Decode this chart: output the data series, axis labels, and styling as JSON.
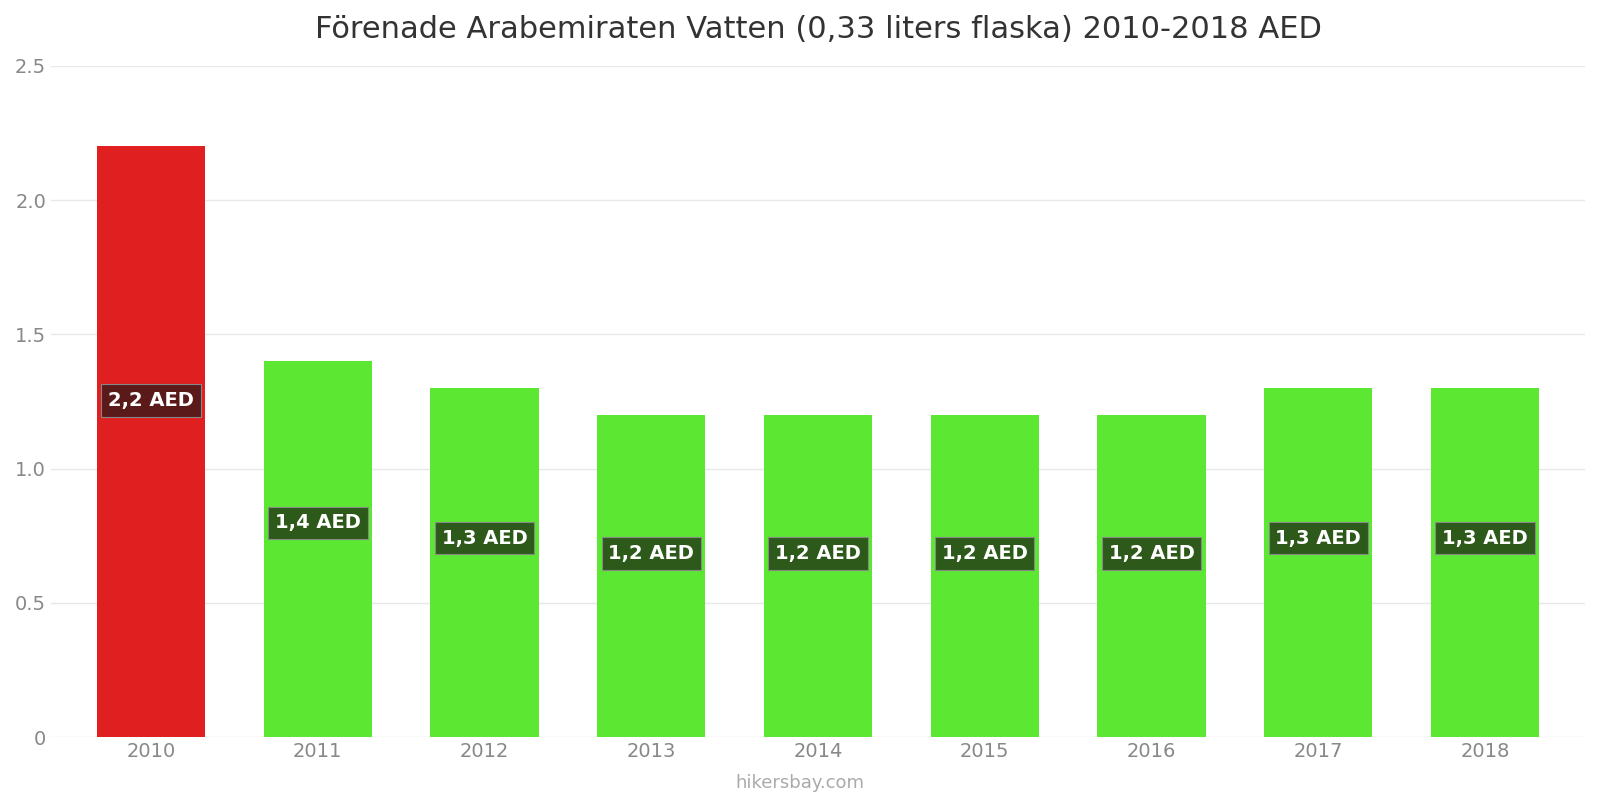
{
  "title": "Förenade Arabemiraten Vatten (0,33 liters flaska) 2010-2018 AED",
  "years": [
    2010,
    2011,
    2012,
    2013,
    2014,
    2015,
    2016,
    2017,
    2018
  ],
  "values": [
    2.2,
    1.4,
    1.3,
    1.2,
    1.2,
    1.2,
    1.2,
    1.3,
    1.3
  ],
  "labels": [
    "2,2 AED",
    "1,4 AED",
    "1,3 AED",
    "1,2 AED",
    "1,2 AED",
    "1,2 AED",
    "1,2 AED",
    "1,3 AED",
    "1,3 AED"
  ],
  "bar_colors": [
    "#e02020",
    "#5ce832",
    "#5ce832",
    "#5ce832",
    "#5ce832",
    "#5ce832",
    "#5ce832",
    "#5ce832",
    "#5ce832"
  ],
  "label_box_colors": [
    "#5a1a1a",
    "#2d5a1a",
    "#2d5a1a",
    "#2d5a1a",
    "#2d5a1a",
    "#2d5a1a",
    "#2d5a1a",
    "#2d5a1a",
    "#2d5a1a"
  ],
  "ylim": [
    0,
    2.5
  ],
  "yticks": [
    0,
    0.5,
    1.0,
    1.5,
    2.0,
    2.5
  ],
  "background_color": "#ffffff",
  "grid_color": "#e8e8e8",
  "title_fontsize": 22,
  "label_text_color": "#ffffff",
  "watermark": "hikersbay.com",
  "bar_width": 0.65
}
